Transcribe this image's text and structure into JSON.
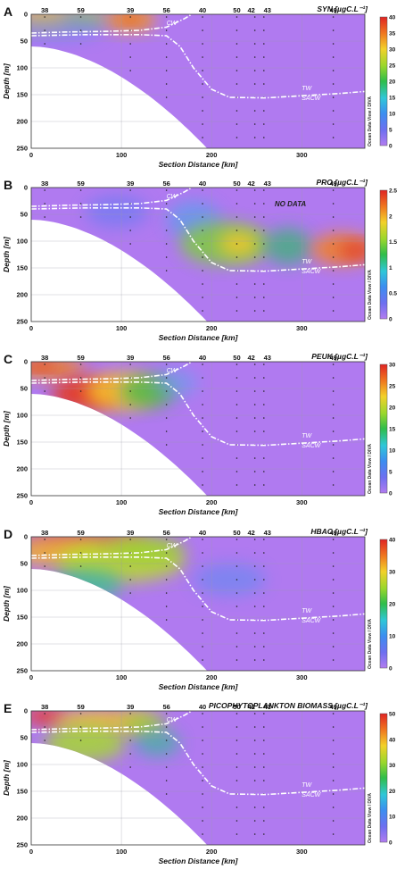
{
  "figure": {
    "x_label": "Section Distance [km]",
    "y_label": "Depth [m]",
    "credit": "Ocean Data View / DIVA",
    "station_labels": [
      "38",
      "59",
      "39",
      "56",
      "40",
      "50",
      "42",
      "43",
      "49"
    ],
    "x_ticks": [
      "0",
      "100",
      "200",
      "300"
    ],
    "y_ticks": [
      "0",
      "50",
      "100",
      "150",
      "200",
      "250"
    ],
    "water_mass_labels": {
      "cw": "CW",
      "tw": "TW",
      "sacw": "SACW"
    }
  },
  "chart_data": [
    {
      "type": "heatmap",
      "panel": "A",
      "title": "SYN",
      "unit": "[µgC.L⁻¹]",
      "colorbar_ticks": [
        "0",
        "5",
        "10",
        "15",
        "20",
        "25",
        "30",
        "35",
        "40"
      ],
      "xlim": [
        0,
        370
      ],
      "ylim": [
        250,
        0
      ],
      "annotations": []
    },
    {
      "type": "heatmap",
      "panel": "B",
      "title": "PRO",
      "unit": "[µgC.L⁻¹]",
      "colorbar_ticks": [
        "0",
        "0.5",
        "1",
        "1.5",
        "2",
        "2.5"
      ],
      "xlim": [
        0,
        370
      ],
      "ylim": [
        250,
        0
      ],
      "annotations": [
        "NO DATA"
      ]
    },
    {
      "type": "heatmap",
      "panel": "C",
      "title": "PEUK",
      "unit": "[µgC.L⁻¹]",
      "colorbar_ticks": [
        "0",
        "5",
        "10",
        "15",
        "20",
        "25",
        "30"
      ],
      "xlim": [
        0,
        370
      ],
      "ylim": [
        250,
        0
      ],
      "annotations": []
    },
    {
      "type": "heatmap",
      "panel": "D",
      "title": "HBAC",
      "unit": "[µgC.L⁻¹]",
      "colorbar_ticks": [
        "0",
        "10",
        "20",
        "30",
        "40"
      ],
      "xlim": [
        0,
        370
      ],
      "ylim": [
        250,
        0
      ],
      "annotations": []
    },
    {
      "type": "heatmap",
      "panel": "E",
      "title": "PICOPHYTOPLANKTON BIOMASS",
      "unit": "[µgC.L⁻¹]",
      "colorbar_ticks": [
        "0",
        "10",
        "20",
        "30",
        "40",
        "50"
      ],
      "xlim": [
        0,
        370
      ],
      "ylim": [
        250,
        0
      ],
      "annotations": []
    }
  ]
}
